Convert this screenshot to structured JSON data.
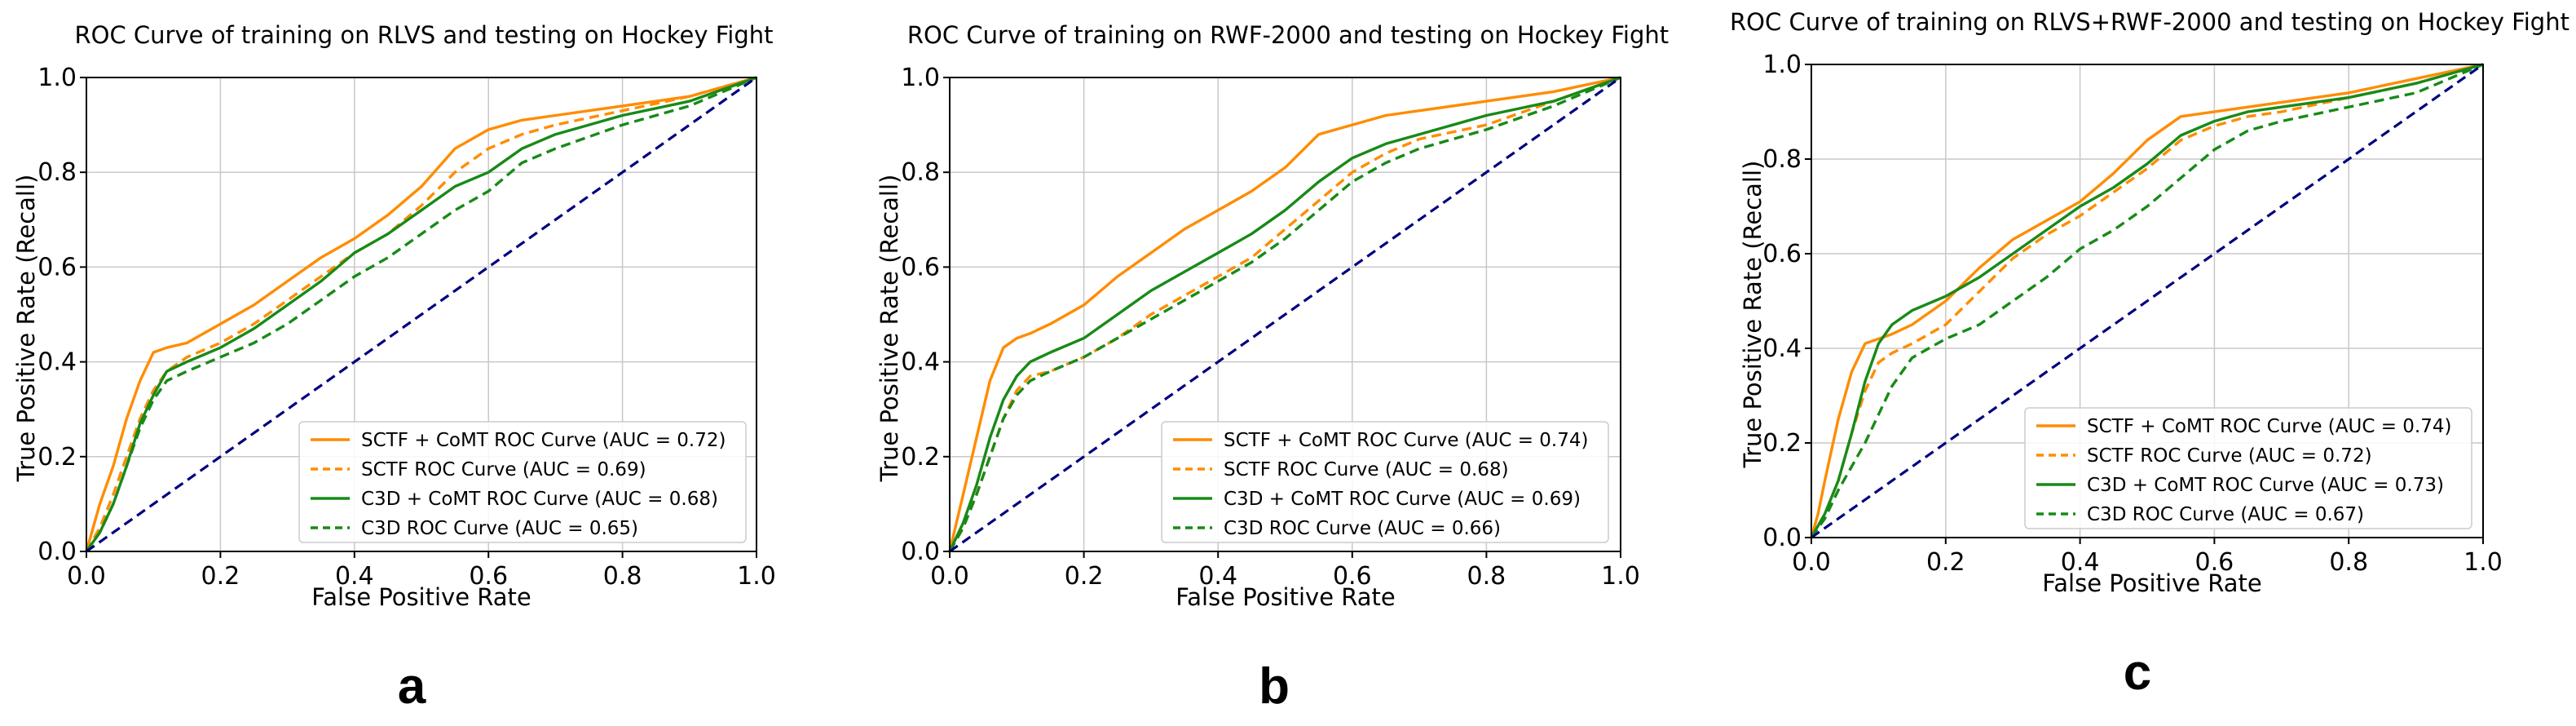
{
  "colors": {
    "sctf_comt": "#ff8c00",
    "sctf": "#ff8c00",
    "c3d_comt": "#188a18",
    "c3d": "#188a18",
    "chance": "#00007f",
    "grid": "#c8c8c8"
  },
  "chart_data": [
    {
      "type": "line",
      "panel_label": "a",
      "title": "ROC Curve of training on RLVS and testing on Hockey Fight",
      "xlabel": "False Positive Rate",
      "ylabel": "True Positive Rate (Recall)",
      "xlim": [
        0,
        1
      ],
      "ylim": [
        0,
        1
      ],
      "grid": true,
      "xticks": [
        "0.0",
        "0.2",
        "0.4",
        "0.6",
        "0.8",
        "1.0"
      ],
      "yticks": [
        "0.0",
        "0.2",
        "0.4",
        "0.6",
        "0.8",
        "1.0"
      ],
      "legend_position": "lower-right",
      "series": [
        {
          "name": "SCTF + CoMT ROC Curve (AUC = 0.72)",
          "color_key": "sctf_comt",
          "style": "solid",
          "x": [
            0,
            0.01,
            0.02,
            0.04,
            0.06,
            0.08,
            0.1,
            0.12,
            0.15,
            0.2,
            0.25,
            0.3,
            0.35,
            0.4,
            0.45,
            0.5,
            0.55,
            0.6,
            0.65,
            0.7,
            0.8,
            0.9,
            1.0
          ],
          "y": [
            0,
            0.05,
            0.1,
            0.18,
            0.28,
            0.36,
            0.42,
            0.43,
            0.44,
            0.48,
            0.52,
            0.57,
            0.62,
            0.66,
            0.71,
            0.77,
            0.85,
            0.89,
            0.91,
            0.92,
            0.94,
            0.96,
            1.0
          ]
        },
        {
          "name": "SCTF ROC Curve (AUC = 0.69)",
          "color_key": "sctf",
          "style": "dashed",
          "x": [
            0,
            0.02,
            0.04,
            0.06,
            0.08,
            0.1,
            0.12,
            0.15,
            0.2,
            0.25,
            0.3,
            0.35,
            0.4,
            0.45,
            0.5,
            0.55,
            0.6,
            0.65,
            0.7,
            0.8,
            0.9,
            1.0
          ],
          "y": [
            0,
            0.05,
            0.12,
            0.2,
            0.28,
            0.34,
            0.38,
            0.41,
            0.44,
            0.48,
            0.53,
            0.58,
            0.63,
            0.67,
            0.73,
            0.8,
            0.85,
            0.88,
            0.9,
            0.93,
            0.96,
            1.0
          ]
        },
        {
          "name": "C3D + CoMT ROC Curve (AUC = 0.68)",
          "color_key": "c3d_comt",
          "style": "solid",
          "x": [
            0,
            0.02,
            0.04,
            0.06,
            0.08,
            0.1,
            0.12,
            0.15,
            0.2,
            0.25,
            0.3,
            0.35,
            0.4,
            0.45,
            0.5,
            0.55,
            0.6,
            0.65,
            0.7,
            0.8,
            0.9,
            1.0
          ],
          "y": [
            0,
            0.04,
            0.1,
            0.18,
            0.27,
            0.33,
            0.38,
            0.4,
            0.43,
            0.47,
            0.52,
            0.57,
            0.63,
            0.67,
            0.72,
            0.77,
            0.8,
            0.85,
            0.88,
            0.92,
            0.95,
            1.0
          ]
        },
        {
          "name": "C3D ROC Curve (AUC = 0.65)",
          "color_key": "c3d",
          "style": "dashed",
          "x": [
            0,
            0.02,
            0.04,
            0.06,
            0.08,
            0.1,
            0.12,
            0.15,
            0.2,
            0.25,
            0.3,
            0.35,
            0.4,
            0.45,
            0.5,
            0.55,
            0.6,
            0.65,
            0.7,
            0.8,
            0.9,
            1.0
          ],
          "y": [
            0,
            0.04,
            0.1,
            0.18,
            0.26,
            0.32,
            0.36,
            0.38,
            0.41,
            0.44,
            0.48,
            0.53,
            0.58,
            0.62,
            0.67,
            0.72,
            0.76,
            0.82,
            0.85,
            0.9,
            0.94,
            1.0
          ]
        },
        {
          "name": "",
          "color_key": "chance",
          "style": "dashed",
          "x": [
            0,
            1
          ],
          "y": [
            0,
            1
          ]
        }
      ]
    },
    {
      "type": "line",
      "panel_label": "b",
      "title": "ROC Curve of training on RWF-2000 and testing on Hockey Fight",
      "xlabel": "False Positive Rate",
      "ylabel": "True Positive Rate (Recall)",
      "xlim": [
        0,
        1
      ],
      "ylim": [
        0,
        1
      ],
      "grid": true,
      "xticks": [
        "0.0",
        "0.2",
        "0.4",
        "0.6",
        "0.8",
        "1.0"
      ],
      "yticks": [
        "0.0",
        "0.2",
        "0.4",
        "0.6",
        "0.8",
        "1.0"
      ],
      "legend_position": "lower-right",
      "series": [
        {
          "name": "SCTF + CoMT ROC Curve (AUC = 0.74)",
          "color_key": "sctf_comt",
          "style": "solid",
          "x": [
            0,
            0.01,
            0.02,
            0.04,
            0.06,
            0.08,
            0.1,
            0.12,
            0.15,
            0.2,
            0.25,
            0.3,
            0.35,
            0.4,
            0.45,
            0.5,
            0.55,
            0.6,
            0.65,
            0.7,
            0.8,
            0.9,
            1.0
          ],
          "y": [
            0,
            0.06,
            0.12,
            0.24,
            0.36,
            0.43,
            0.45,
            0.46,
            0.48,
            0.52,
            0.58,
            0.63,
            0.68,
            0.72,
            0.76,
            0.81,
            0.88,
            0.9,
            0.92,
            0.93,
            0.95,
            0.97,
            1.0
          ]
        },
        {
          "name": "SCTF ROC Curve (AUC = 0.68)",
          "color_key": "sctf",
          "style": "dashed",
          "x": [
            0,
            0.02,
            0.04,
            0.06,
            0.08,
            0.1,
            0.12,
            0.15,
            0.2,
            0.25,
            0.3,
            0.35,
            0.4,
            0.45,
            0.5,
            0.55,
            0.6,
            0.65,
            0.7,
            0.8,
            0.9,
            1.0
          ],
          "y": [
            0,
            0.05,
            0.12,
            0.2,
            0.28,
            0.34,
            0.37,
            0.38,
            0.41,
            0.45,
            0.5,
            0.54,
            0.58,
            0.62,
            0.68,
            0.74,
            0.8,
            0.84,
            0.87,
            0.9,
            0.95,
            1.0
          ]
        },
        {
          "name": "C3D + CoMT ROC Curve (AUC = 0.69)",
          "color_key": "c3d_comt",
          "style": "solid",
          "x": [
            0,
            0.02,
            0.04,
            0.06,
            0.08,
            0.1,
            0.12,
            0.15,
            0.2,
            0.25,
            0.3,
            0.35,
            0.4,
            0.45,
            0.5,
            0.55,
            0.6,
            0.65,
            0.7,
            0.8,
            0.9,
            1.0
          ],
          "y": [
            0,
            0.06,
            0.14,
            0.24,
            0.32,
            0.37,
            0.4,
            0.42,
            0.45,
            0.5,
            0.55,
            0.59,
            0.63,
            0.67,
            0.72,
            0.78,
            0.83,
            0.86,
            0.88,
            0.92,
            0.95,
            1.0
          ]
        },
        {
          "name": "C3D ROC Curve (AUC = 0.66)",
          "color_key": "c3d",
          "style": "dashed",
          "x": [
            0,
            0.02,
            0.04,
            0.06,
            0.08,
            0.1,
            0.12,
            0.15,
            0.2,
            0.25,
            0.3,
            0.35,
            0.4,
            0.45,
            0.5,
            0.55,
            0.6,
            0.65,
            0.7,
            0.8,
            0.9,
            1.0
          ],
          "y": [
            0,
            0.05,
            0.12,
            0.2,
            0.28,
            0.33,
            0.36,
            0.38,
            0.41,
            0.45,
            0.49,
            0.53,
            0.57,
            0.61,
            0.66,
            0.72,
            0.78,
            0.82,
            0.85,
            0.89,
            0.94,
            1.0
          ]
        },
        {
          "name": "",
          "color_key": "chance",
          "style": "dashed",
          "x": [
            0,
            1
          ],
          "y": [
            0,
            1
          ]
        }
      ]
    },
    {
      "type": "line",
      "panel_label": "c",
      "title": "ROC Curve of training on RLVS+RWF-2000 and testing on Hockey Fight",
      "xlabel": "False Positive Rate",
      "ylabel": "True Positive Rate (Recall)",
      "xlim": [
        0,
        1
      ],
      "ylim": [
        0,
        1
      ],
      "grid": true,
      "xticks": [
        "0.0",
        "0.2",
        "0.4",
        "0.6",
        "0.8",
        "1.0"
      ],
      "yticks": [
        "0.0",
        "0.2",
        "0.4",
        "0.6",
        "0.8",
        "1.0"
      ],
      "legend_position": "lower-right",
      "series": [
        {
          "name": "SCTF + CoMT ROC Curve (AUC = 0.74)",
          "color_key": "sctf_comt",
          "style": "solid",
          "x": [
            0,
            0.01,
            0.02,
            0.04,
            0.06,
            0.08,
            0.1,
            0.12,
            0.15,
            0.2,
            0.25,
            0.3,
            0.35,
            0.4,
            0.45,
            0.5,
            0.55,
            0.6,
            0.65,
            0.7,
            0.8,
            0.9,
            1.0
          ],
          "y": [
            0,
            0.05,
            0.12,
            0.25,
            0.35,
            0.41,
            0.42,
            0.43,
            0.45,
            0.5,
            0.57,
            0.63,
            0.67,
            0.71,
            0.77,
            0.84,
            0.89,
            0.9,
            0.91,
            0.92,
            0.94,
            0.97,
            1.0
          ]
        },
        {
          "name": "SCTF ROC Curve (AUC = 0.72)",
          "color_key": "sctf",
          "style": "dashed",
          "x": [
            0,
            0.02,
            0.04,
            0.06,
            0.08,
            0.1,
            0.12,
            0.15,
            0.2,
            0.25,
            0.3,
            0.35,
            0.4,
            0.45,
            0.5,
            0.55,
            0.6,
            0.65,
            0.7,
            0.8,
            0.9,
            1.0
          ],
          "y": [
            0,
            0.05,
            0.12,
            0.22,
            0.31,
            0.37,
            0.39,
            0.41,
            0.45,
            0.52,
            0.59,
            0.64,
            0.68,
            0.73,
            0.78,
            0.84,
            0.87,
            0.89,
            0.9,
            0.93,
            0.96,
            1.0
          ]
        },
        {
          "name": "C3D + CoMT ROC Curve (AUC = 0.73)",
          "color_key": "c3d_comt",
          "style": "solid",
          "x": [
            0,
            0.02,
            0.04,
            0.06,
            0.08,
            0.1,
            0.12,
            0.15,
            0.2,
            0.25,
            0.3,
            0.35,
            0.4,
            0.45,
            0.5,
            0.55,
            0.6,
            0.65,
            0.7,
            0.8,
            0.9,
            1.0
          ],
          "y": [
            0,
            0.05,
            0.12,
            0.22,
            0.33,
            0.41,
            0.45,
            0.48,
            0.51,
            0.55,
            0.6,
            0.65,
            0.7,
            0.74,
            0.79,
            0.85,
            0.88,
            0.9,
            0.91,
            0.93,
            0.96,
            1.0
          ]
        },
        {
          "name": "C3D ROC Curve (AUC = 0.67)",
          "color_key": "c3d",
          "style": "dashed",
          "x": [
            0,
            0.02,
            0.04,
            0.06,
            0.08,
            0.1,
            0.12,
            0.15,
            0.2,
            0.25,
            0.3,
            0.35,
            0.4,
            0.45,
            0.5,
            0.55,
            0.6,
            0.65,
            0.7,
            0.8,
            0.9,
            1.0
          ],
          "y": [
            0,
            0.04,
            0.1,
            0.15,
            0.2,
            0.26,
            0.32,
            0.38,
            0.42,
            0.45,
            0.5,
            0.55,
            0.61,
            0.65,
            0.7,
            0.76,
            0.82,
            0.86,
            0.88,
            0.91,
            0.94,
            1.0
          ]
        },
        {
          "name": "",
          "color_key": "chance",
          "style": "dashed",
          "x": [
            0,
            1
          ],
          "y": [
            0,
            1
          ]
        }
      ]
    }
  ]
}
